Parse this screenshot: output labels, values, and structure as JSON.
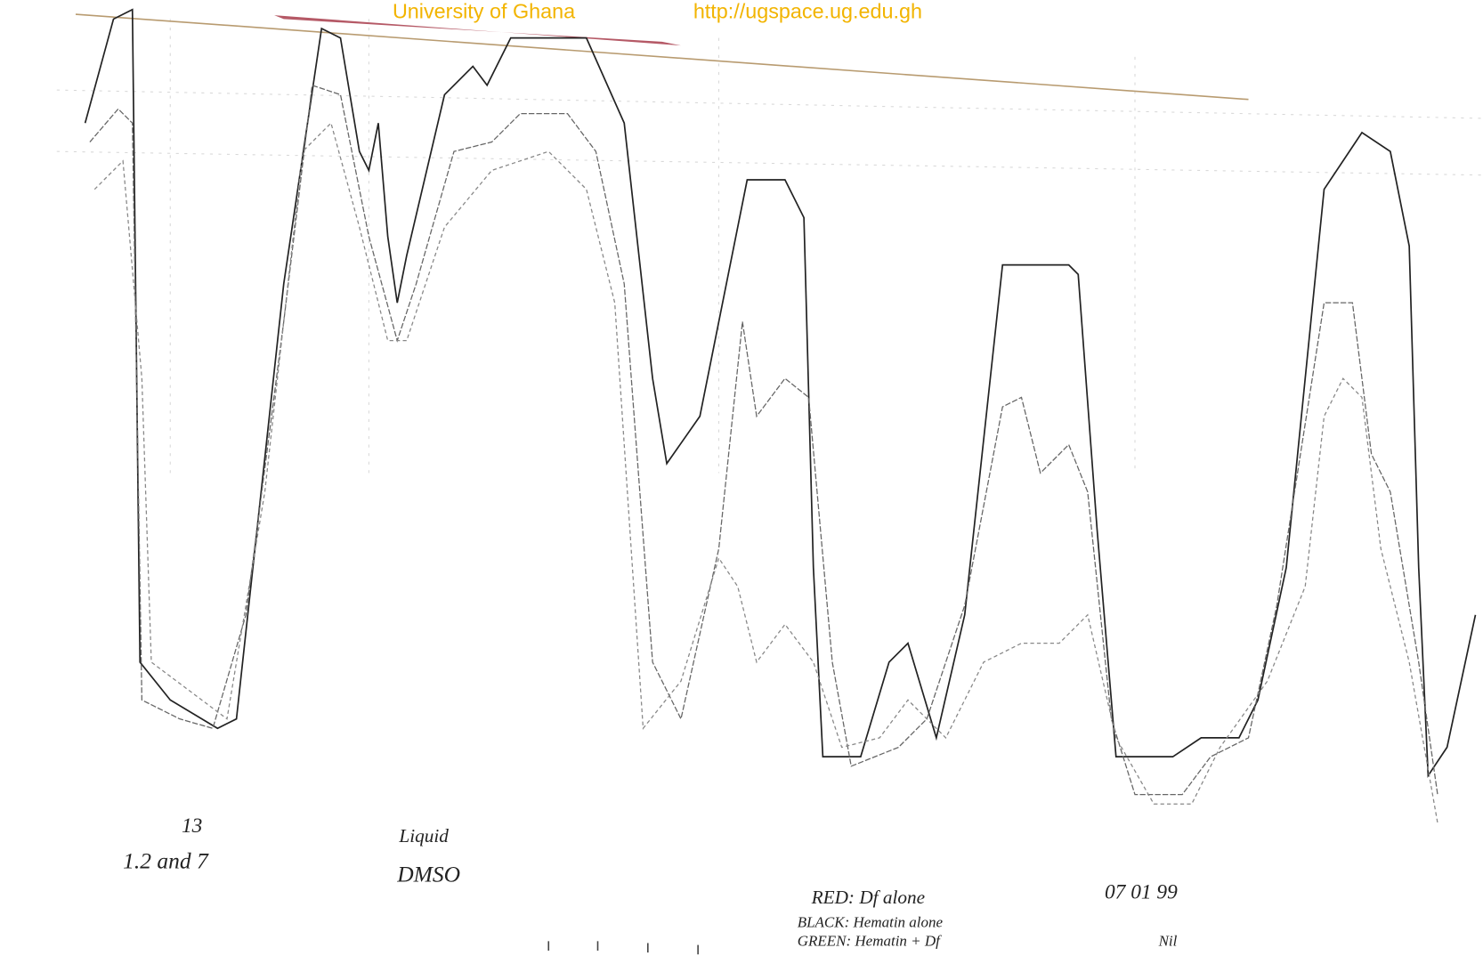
{
  "header": {
    "institution": "University of Ghana",
    "url": "http://ugspace.ug.edu.gh"
  },
  "annotations": {
    "sample_number": "13",
    "samples": "1.2 and 7",
    "medium": [
      "Liquid",
      "DMSO"
    ],
    "legend": [
      "RED: Df alone",
      "BLACK: Hematin alone",
      "GREEN: Hematin + Df"
    ],
    "date": "07 01 99",
    "note": "Nil"
  }
}
